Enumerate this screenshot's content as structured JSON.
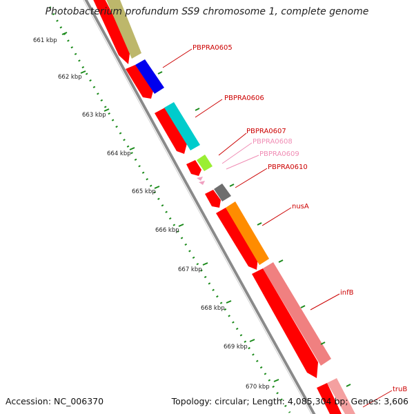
{
  "title": "Photobacterium profundum SS9 chromosome 1, complete genome",
  "accession": "Accession: NC_006370",
  "topology": "Topology: circular; Length: 4,085,304 bp; Genes: 3,606",
  "scale_labels": [
    "661 kbp",
    "662 kbp",
    "663 kbp",
    "664 kbp",
    "665 kbp",
    "666 kbp",
    "667 kbp",
    "668 kbp",
    "669 kbp",
    "670 kbp"
  ],
  "gene_labels": [
    {
      "name": "PBPRA0605",
      "color": "#cc0000"
    },
    {
      "name": "PBPRA0606",
      "color": "#cc0000"
    },
    {
      "name": "PBPRA0607",
      "color": "#cc0000"
    },
    {
      "name": "PBPRA0608",
      "color": "#f08cb4"
    },
    {
      "name": "PBPRA0609",
      "color": "#f08cb4"
    },
    {
      "name": "PBPRA0610",
      "color": "#cc0000"
    },
    {
      "name": "nusA",
      "color": "#cc0000"
    },
    {
      "name": "infB",
      "color": "#cc0000"
    },
    {
      "name": "truB",
      "color": "#cc0000"
    }
  ],
  "colors": {
    "cds": "#ff0000",
    "backbone": "#888888",
    "tick": "#1a8a1a",
    "label_line": "#cc0000"
  }
}
